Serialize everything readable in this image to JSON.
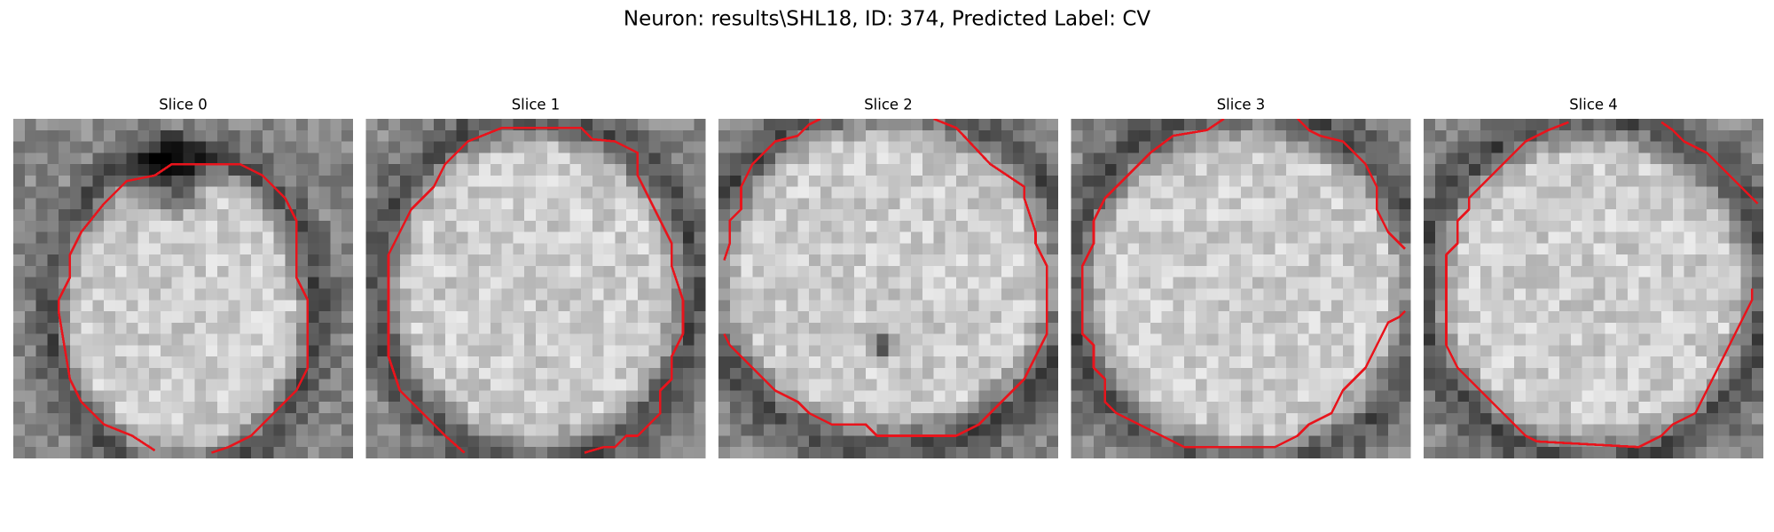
{
  "title": "Neuron: results\\SHL18, ID: 374, Predicted Label: CV",
  "panels": [
    {
      "title": "Slice 0"
    },
    {
      "title": "Slice 1"
    },
    {
      "title": "Slice 2"
    },
    {
      "title": "Slice 3"
    },
    {
      "title": "Slice 4"
    }
  ]
}
